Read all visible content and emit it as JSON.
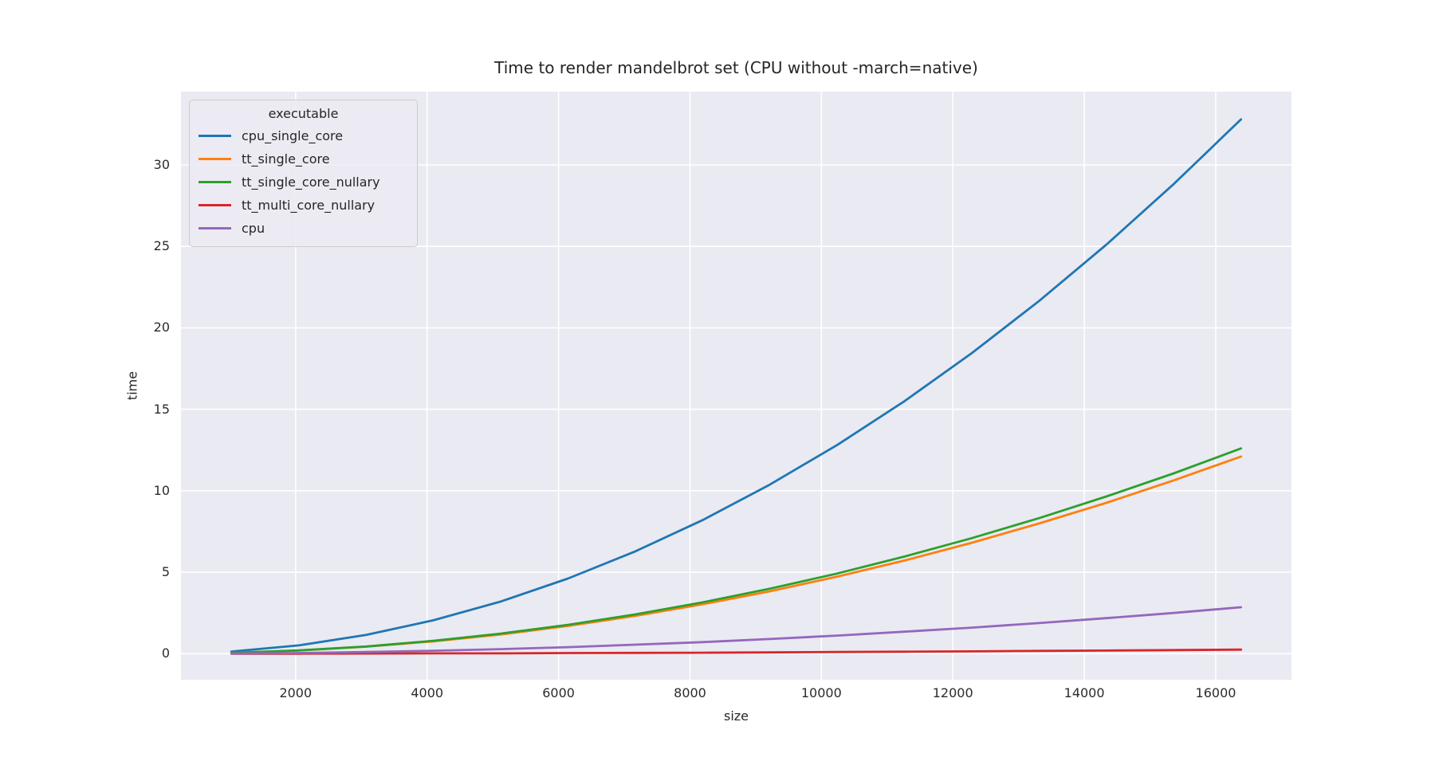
{
  "chart_data": {
    "type": "line",
    "title": "Time to render mandelbrot set (CPU without -march=native)",
    "xlabel": "size",
    "ylabel": "time",
    "legend_title": "executable",
    "legend_position": "upper left",
    "grid": true,
    "xlim": [
      256,
      17152
    ],
    "ylim": [
      -1.6,
      34.5
    ],
    "xticks": [
      2000,
      4000,
      6000,
      8000,
      10000,
      12000,
      14000,
      16000
    ],
    "yticks": [
      0,
      5,
      10,
      15,
      20,
      25,
      30
    ],
    "x": [
      1024,
      2048,
      3072,
      4096,
      5120,
      6144,
      7168,
      8192,
      9216,
      10240,
      11264,
      12288,
      13312,
      14336,
      15360,
      16384
    ],
    "series": [
      {
        "name": "cpu_single_core",
        "color": "#1f77b4",
        "values": [
          0.13,
          0.51,
          1.15,
          2.05,
          3.2,
          4.61,
          6.28,
          8.2,
          10.38,
          12.81,
          15.5,
          18.45,
          21.65,
          25.11,
          28.83,
          32.8
        ]
      },
      {
        "name": "tt_single_core",
        "color": "#ff7f0e",
        "values": [
          0.05,
          0.19,
          0.43,
          0.76,
          1.18,
          1.7,
          2.32,
          3.03,
          3.83,
          4.73,
          5.72,
          6.81,
          7.99,
          9.26,
          10.64,
          12.1
        ]
      },
      {
        "name": "tt_single_core_nullary",
        "color": "#2ca02c",
        "values": [
          0.05,
          0.2,
          0.44,
          0.79,
          1.23,
          1.77,
          2.41,
          3.15,
          3.99,
          4.92,
          5.96,
          7.09,
          8.32,
          9.65,
          11.07,
          12.6
        ]
      },
      {
        "name": "tt_multi_core_nullary",
        "color": "#d62728",
        "values": [
          0.0,
          0.0,
          0.01,
          0.02,
          0.02,
          0.04,
          0.05,
          0.06,
          0.08,
          0.1,
          0.12,
          0.14,
          0.17,
          0.19,
          0.22,
          0.25
        ]
      },
      {
        "name": "cpu",
        "color": "#9467bd",
        "values": [
          0.01,
          0.04,
          0.1,
          0.18,
          0.28,
          0.4,
          0.55,
          0.71,
          0.9,
          1.11,
          1.35,
          1.6,
          1.88,
          2.18,
          2.5,
          2.85
        ]
      }
    ],
    "colors": {
      "plot_bg": "#eaeaf2",
      "grid": "#ffffff",
      "text": "#262626"
    }
  }
}
